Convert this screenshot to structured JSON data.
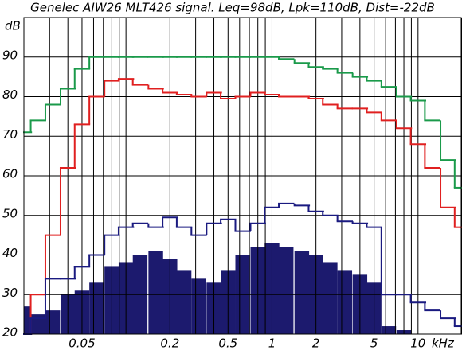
{
  "chart_data": {
    "type": "step",
    "title": "Genelec AIW26 MLT426 signal. Leq=98dB, Lpk=110dB, Dist=-22dB",
    "y_label": "dB",
    "x_label": "kHz",
    "log_x": true,
    "grid": true,
    "xlim": [
      0.02,
      20
    ],
    "ylim": [
      20,
      100
    ],
    "xticks": [
      0.05,
      0.2,
      0.5,
      1,
      2,
      5,
      10
    ],
    "xminor": [
      0.02,
      0.03,
      0.04,
      0.05,
      0.06,
      0.07,
      0.08,
      0.09,
      0.1,
      0.2,
      0.3,
      0.4,
      0.5,
      0.6,
      0.7,
      0.8,
      0.9,
      1,
      2,
      3,
      4,
      5,
      6,
      7,
      8,
      9,
      10,
      20
    ],
    "yticks": [
      20,
      30,
      40,
      50,
      60,
      70,
      80,
      90
    ],
    "x": [
      0.02,
      0.025,
      0.0315,
      0.04,
      0.05,
      0.063,
      0.08,
      0.1,
      0.125,
      0.16,
      0.2,
      0.25,
      0.315,
      0.4,
      0.5,
      0.63,
      0.8,
      1,
      1.25,
      1.6,
      2,
      2.5,
      3.15,
      4,
      5,
      6.3,
      8,
      10,
      12.5,
      16,
      20
    ],
    "spectrum": {
      "color": "#1c1a6e",
      "values": [
        27,
        25,
        26,
        30,
        31,
        33,
        37,
        38,
        40,
        41,
        39,
        36,
        34,
        33,
        36,
        40,
        42,
        43,
        42,
        41,
        40,
        38,
        36,
        35,
        33,
        22,
        21,
        20,
        20,
        20,
        20
      ]
    },
    "series": [
      {
        "color": "#1a9a4a",
        "values": [
          71,
          74,
          78,
          82,
          87,
          90,
          90,
          90,
          90,
          90,
          90,
          90,
          90,
          90,
          90,
          90,
          90,
          90,
          89.5,
          88.5,
          87.5,
          87,
          86,
          85,
          84,
          82.5,
          80,
          79,
          74,
          64,
          57
        ]
      },
      {
        "color": "#e02020",
        "values": [
          20,
          30,
          45,
          62,
          73,
          80,
          84,
          84.5,
          83,
          82,
          81,
          80.5,
          80,
          81,
          79.5,
          80,
          81,
          80.5,
          80,
          80,
          79.5,
          78,
          77,
          77,
          76,
          74,
          72,
          68,
          62,
          52,
          47
        ]
      },
      {
        "color": "#1a1a80",
        "values": [
          20,
          24,
          34,
          34,
          37,
          40,
          45,
          47,
          48,
          47,
          49.5,
          47,
          45,
          48,
          49,
          46,
          48,
          52,
          53,
          52.5,
          51,
          50,
          48.5,
          48,
          47,
          30,
          30,
          28,
          26,
          24,
          22
        ]
      }
    ]
  }
}
